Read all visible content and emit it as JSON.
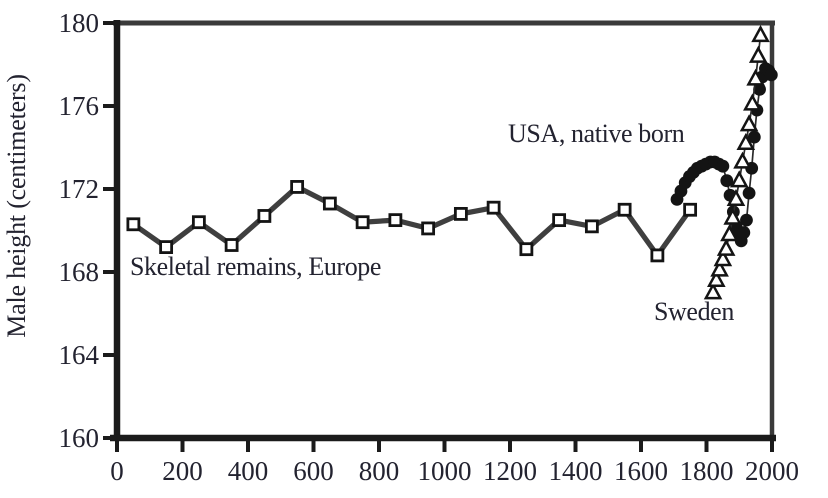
{
  "figure": {
    "y_axis_title": "Male height (centimeters)",
    "x_axis_title": "",
    "annotations": {
      "europe": "Skeletal remains, Europe",
      "usa": "USA, native born",
      "sweden": "Sweden"
    }
  },
  "colors": {
    "text": "#232330",
    "axis": "#1b1b1b",
    "border": "#3a3a3a",
    "europe_line": "#3f3f3f",
    "thin_line": "#2b2b2b",
    "marker_fill": "#141414",
    "marker_stroke": "#141414",
    "marker_open_fill": "#ffffff"
  },
  "chart_data": {
    "type": "line",
    "title": "",
    "xlabel": "",
    "ylabel": "Male height (centimeters)",
    "xlim": [
      0,
      2000
    ],
    "ylim": [
      160,
      180
    ],
    "x_ticks": [
      0,
      200,
      400,
      600,
      800,
      1000,
      1200,
      1400,
      1600,
      1800,
      2000
    ],
    "y_ticks": [
      160,
      164,
      168,
      172,
      176,
      180
    ],
    "grid": false,
    "legend_position": "inline-annotations",
    "series": [
      {
        "name": "Skeletal remains, Europe",
        "marker": "open-square",
        "line": "thick-gray",
        "x": [
          50,
          150,
          250,
          350,
          450,
          550,
          650,
          750,
          850,
          950,
          1050,
          1150,
          1250,
          1350,
          1450,
          1550,
          1650,
          1750
        ],
        "y": [
          170.3,
          169.2,
          170.4,
          169.3,
          170.7,
          172.1,
          171.3,
          170.4,
          170.5,
          170.1,
          170.8,
          171.1,
          169.1,
          170.5,
          170.2,
          171.0,
          168.8,
          171.0
        ]
      },
      {
        "name": "USA, native born",
        "marker": "filled-circle",
        "line": "thin",
        "x": [
          1710,
          1722,
          1735,
          1748,
          1760,
          1772,
          1785,
          1798,
          1812,
          1825,
          1838,
          1850,
          1862,
          1872,
          1882,
          1890,
          1898,
          1906,
          1914,
          1922,
          1930,
          1938,
          1946,
          1954,
          1962,
          1970,
          1980,
          1990,
          1998
        ],
        "y": [
          171.5,
          171.9,
          172.3,
          172.6,
          172.8,
          173.0,
          173.1,
          173.2,
          173.3,
          173.3,
          173.2,
          173.1,
          172.4,
          171.7,
          170.9,
          170.2,
          169.8,
          169.5,
          169.9,
          170.5,
          171.8,
          173.0,
          174.5,
          175.8,
          176.8,
          177.4,
          177.8,
          177.7,
          177.5
        ]
      },
      {
        "name": "Sweden",
        "marker": "open-triangle",
        "line": "thin",
        "x": [
          1820,
          1830,
          1840,
          1850,
          1860,
          1870,
          1880,
          1890,
          1900,
          1910,
          1920,
          1930,
          1940,
          1950,
          1958,
          1965
        ],
        "y": [
          167.0,
          167.6,
          168.1,
          168.6,
          169.1,
          169.8,
          170.6,
          171.5,
          172.4,
          173.3,
          174.2,
          175.1,
          176.1,
          177.3,
          178.4,
          179.4
        ]
      }
    ]
  }
}
